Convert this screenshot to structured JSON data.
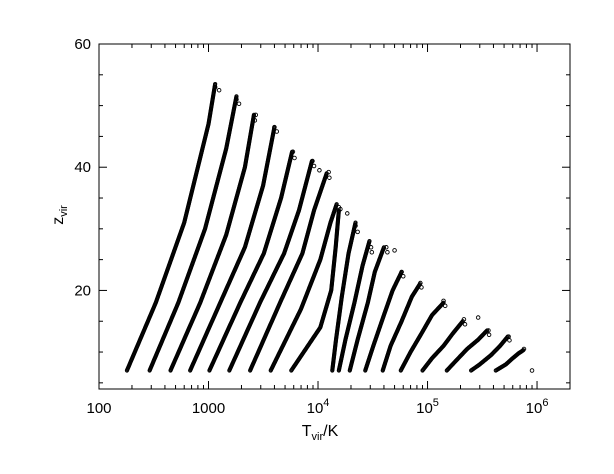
{
  "chart_data": {
    "type": "scatter",
    "title": "",
    "xlabel": {
      "main": "T",
      "sub": "vir",
      "suffix": "/K"
    },
    "ylabel": {
      "main": "z",
      "sub": "vir"
    },
    "x_scale": "log",
    "xlim": [
      100,
      2000000
    ],
    "ylim": [
      4,
      60
    ],
    "grid": false,
    "legend": "none",
    "marker": "open-circle",
    "x_ticks": [
      {
        "value": 100,
        "label": "100",
        "exp": ""
      },
      {
        "value": 1000,
        "label": "1000",
        "exp": ""
      },
      {
        "value": 10000,
        "label": "10",
        "exp": "4"
      },
      {
        "value": 100000,
        "label": "10",
        "exp": "5"
      },
      {
        "value": 1000000,
        "label": "10",
        "exp": "6"
      }
    ],
    "y_ticks": [
      {
        "value": 20,
        "label": "20"
      },
      {
        "value": 40,
        "label": "40"
      },
      {
        "value": 60,
        "label": "60"
      }
    ],
    "series": [
      {
        "points": [
          [
            180,
            7.0
          ],
          [
            330,
            18
          ],
          [
            600,
            31
          ],
          [
            1000,
            47
          ],
          [
            1150,
            53.5
          ]
        ]
      },
      {
        "points": [
          [
            290,
            7.0
          ],
          [
            530,
            18
          ],
          [
            930,
            30
          ],
          [
            1450,
            43
          ],
          [
            1800,
            51.5
          ]
        ]
      },
      {
        "points": [
          [
            450,
            7.0
          ],
          [
            840,
            18
          ],
          [
            1450,
            29
          ],
          [
            2150,
            40
          ],
          [
            2600,
            48.5
          ]
        ]
      },
      {
        "points": [
          [
            680,
            7.0
          ],
          [
            1280,
            18
          ],
          [
            2150,
            27
          ],
          [
            3150,
            37
          ],
          [
            4000,
            46.5
          ]
        ]
      },
      {
        "points": [
          [
            1020,
            7.0
          ],
          [
            1950,
            18
          ],
          [
            3200,
            26
          ],
          [
            4600,
            35
          ],
          [
            5800,
            42.5
          ]
        ]
      },
      {
        "points": [
          [
            1550,
            7.0
          ],
          [
            2950,
            18
          ],
          [
            4900,
            26
          ],
          [
            6700,
            33
          ],
          [
            8800,
            41
          ]
        ]
      },
      {
        "points": [
          [
            2400,
            7.0
          ],
          [
            4500,
            18
          ],
          [
            7200,
            26
          ],
          [
            9200,
            33
          ],
          [
            12000,
            39
          ]
        ]
      },
      {
        "points": [
          [
            3700,
            7.0
          ],
          [
            7000,
            17
          ],
          [
            10500,
            25
          ],
          [
            13000,
            31
          ],
          [
            14800,
            34
          ]
        ]
      },
      {
        "points": [
          [
            5700,
            7.0
          ],
          [
            10500,
            14
          ],
          [
            13200,
            20
          ],
          [
            14500,
            27
          ],
          [
            15500,
            33
          ]
        ]
      },
      {
        "points": [
          [
            13500,
            7.0
          ],
          [
            14600,
            12
          ],
          [
            16500,
            19
          ],
          [
            19000,
            26
          ],
          [
            22000,
            31
          ]
        ]
      },
      {
        "points": [
          [
            15500,
            7.0
          ],
          [
            17800,
            12
          ],
          [
            21500,
            18
          ],
          [
            25500,
            24
          ],
          [
            29500,
            28
          ]
        ]
      },
      {
        "points": [
          [
            19500,
            7.0
          ],
          [
            23000,
            12
          ],
          [
            28500,
            18
          ],
          [
            33000,
            23
          ],
          [
            40000,
            27
          ]
        ]
      },
      {
        "points": [
          [
            27000,
            7.0
          ],
          [
            32000,
            11
          ],
          [
            40000,
            16
          ],
          [
            48000,
            20
          ],
          [
            58000,
            23
          ]
        ]
      },
      {
        "points": [
          [
            39000,
            7.0
          ],
          [
            46000,
            11
          ],
          [
            58000,
            15
          ],
          [
            72000,
            19
          ],
          [
            85000,
            21
          ]
        ]
      },
      {
        "points": [
          [
            57000,
            7.0
          ],
          [
            70000,
            10
          ],
          [
            88000,
            13
          ],
          [
            110000,
            16
          ],
          [
            140000,
            18
          ]
        ]
      },
      {
        "points": [
          [
            90000,
            7.0
          ],
          [
            110000,
            9
          ],
          [
            140000,
            11
          ],
          [
            170000,
            13
          ],
          [
            210000,
            15
          ]
        ]
      },
      {
        "points": [
          [
            150000,
            7.0
          ],
          [
            180000,
            8.5
          ],
          [
            230000,
            10.5
          ],
          [
            290000,
            12
          ],
          [
            350000,
            13.5
          ]
        ]
      },
      {
        "points": [
          [
            250000,
            7.0
          ],
          [
            300000,
            8
          ],
          [
            380000,
            9.5
          ],
          [
            460000,
            11
          ],
          [
            540000,
            12.5
          ]
        ]
      },
      {
        "points": [
          [
            420000,
            7.0
          ],
          [
            520000,
            8
          ],
          [
            600000,
            9
          ],
          [
            680000,
            9.8
          ],
          [
            750000,
            10.3
          ]
        ]
      }
    ],
    "outliers": [
      [
        1150,
        53
      ],
      [
        1250,
        52.5
      ],
      [
        1800,
        51
      ],
      [
        1900,
        50.3
      ],
      [
        2700,
        48.5
      ],
      [
        2650,
        47.6
      ],
      [
        4000,
        46.5
      ],
      [
        4200,
        45.8
      ],
      [
        5900,
        42.5
      ],
      [
        6100,
        41.5
      ],
      [
        8900,
        41
      ],
      [
        9200,
        40.2
      ],
      [
        10300,
        39.5
      ],
      [
        12500,
        39.2
      ],
      [
        12700,
        38.3
      ],
      [
        15500,
        33.5
      ],
      [
        16000,
        33.2
      ],
      [
        18500,
        32.5
      ],
      [
        22000,
        30.5
      ],
      [
        23000,
        29.5
      ],
      [
        30500,
        27
      ],
      [
        31000,
        26.2
      ],
      [
        42000,
        27
      ],
      [
        43000,
        26.2
      ],
      [
        50000,
        26.5
      ],
      [
        58000,
        23
      ],
      [
        60000,
        22.3
      ],
      [
        86000,
        21.2
      ],
      [
        88000,
        20.5
      ],
      [
        140000,
        18.3
      ],
      [
        145000,
        17.5
      ],
      [
        215000,
        15.3
      ],
      [
        220000,
        14.5
      ],
      [
        290000,
        15.6
      ],
      [
        360000,
        13.5
      ],
      [
        365000,
        12.8
      ],
      [
        550000,
        12.5
      ],
      [
        560000,
        11.9
      ],
      [
        760000,
        10.5
      ],
      [
        900000,
        7.0
      ]
    ]
  }
}
